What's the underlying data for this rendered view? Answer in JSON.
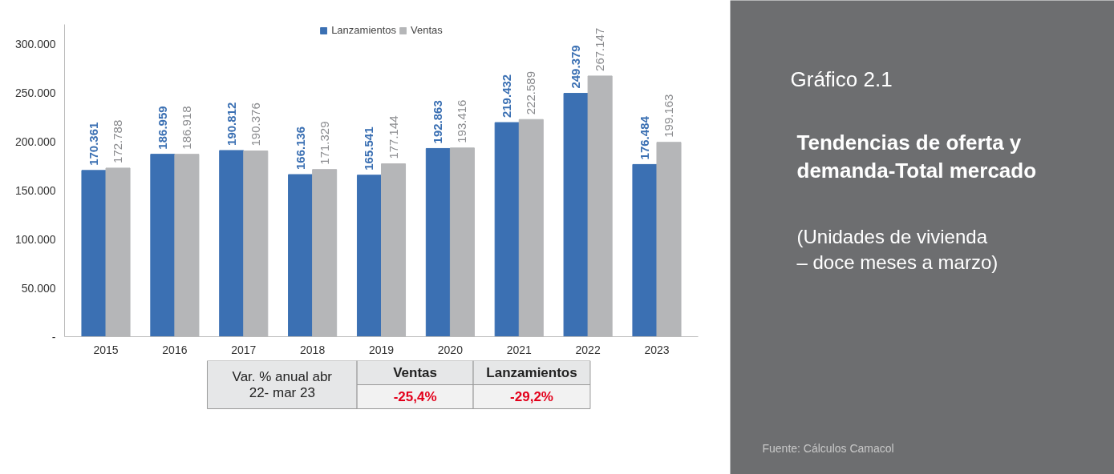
{
  "chart_data": {
    "type": "bar",
    "title": "Gráfico 2.1",
    "subtitle": "Tendencias de oferta y demanda-Total mercado",
    "categories": [
      "2015",
      "2016",
      "2017",
      "2018",
      "2019",
      "2020",
      "2021",
      "2022",
      "2023"
    ],
    "series": [
      {
        "name": "Lanzamientos",
        "color": "#3b70b3",
        "values": [
          170361,
          186959,
          190812,
          166136,
          165541,
          192863,
          219432,
          249379,
          176484
        ],
        "value_labels": [
          "170.361",
          "186.959",
          "190.812",
          "166.136",
          "165.541",
          "192.863",
          "219.432",
          "249.379",
          "176.484"
        ]
      },
      {
        "name": "Ventas",
        "color": "#b5b6b8",
        "values": [
          172788,
          186918,
          190376,
          171329,
          177144,
          193416,
          222589,
          267147,
          199163
        ],
        "value_labels": [
          "172.788",
          "186.918",
          "190.376",
          "171.329",
          "177.144",
          "193.416",
          "222.589",
          "267.147",
          "199.163"
        ]
      }
    ],
    "ylim": [
      0,
      320000
    ],
    "yticks": [
      {
        "value": 0,
        "label": "-"
      },
      {
        "value": 50000,
        "label": "50.000"
      },
      {
        "value": 100000,
        "label": "100.000"
      },
      {
        "value": 150000,
        "label": "150.000"
      },
      {
        "value": 200000,
        "label": "200.000"
      },
      {
        "value": 250000,
        "label": "250.000"
      },
      {
        "value": 300000,
        "label": "300.000"
      }
    ],
    "data_labels": true,
    "grid": false,
    "legend": "top",
    "annotations": [
      "Var. % anual abr 22- mar 23",
      "Ventas",
      "Lanzamientos",
      "-25,4%",
      "-29,2%",
      "(Unidades de vivienda – doce meses a marzo)",
      "Fuente: Cálculos Camacol"
    ]
  }
}
